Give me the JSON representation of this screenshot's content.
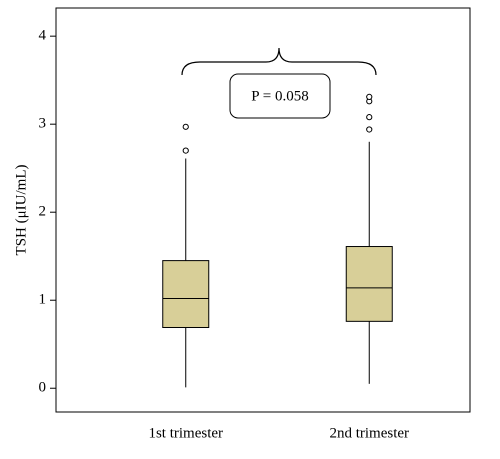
{
  "chart_data": {
    "type": "box",
    "y_label": "TSH (μIU/mL)",
    "annotation": "P = 0.058",
    "categories": [
      "1st trimester",
      "2nd trimester"
    ],
    "boxes": [
      {
        "min": 0.01,
        "q1": 0.69,
        "median": 1.02,
        "q3": 1.45,
        "max": 2.61,
        "outliers": [
          2.7,
          2.97
        ]
      },
      {
        "min": 0.05,
        "q1": 0.76,
        "median": 1.14,
        "q3": 1.61,
        "max": 2.8,
        "outliers": [
          2.94,
          3.08,
          3.26,
          3.31
        ]
      }
    ],
    "color": "#d8cf98",
    "ylim": [
      -0.27,
      4.32
    ],
    "yticks": [
      0,
      1,
      2,
      3,
      4
    ]
  }
}
